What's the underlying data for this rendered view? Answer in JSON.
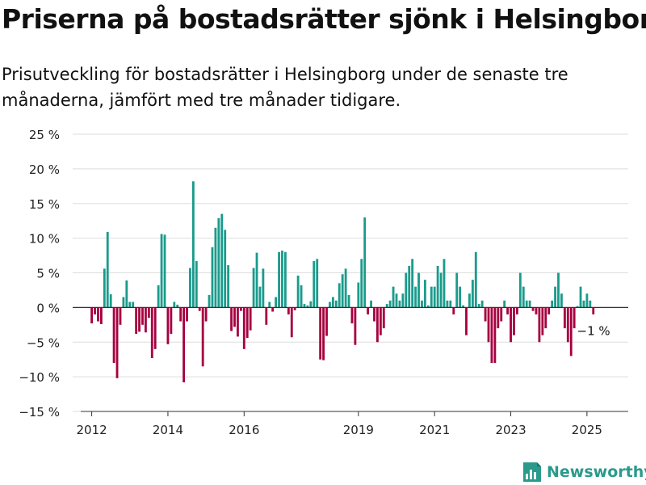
{
  "header": {
    "title": "Priserna på bostadsrätter sjönk i Helsingborg",
    "subtitle": "Prisutveckling för bostadsrätter i Helsingborg under de senaste tre månaderna, jämfört med tre månader tidigare."
  },
  "brand": {
    "name": "Newsworthy",
    "logo_icon": "bar-chart-logo-icon",
    "color": "#2a9a8b"
  },
  "chart_data": {
    "type": "bar",
    "unit": "%",
    "ylim": [
      -15,
      25
    ],
    "yticks": [
      -15,
      -10,
      -5,
      0,
      5,
      10,
      15,
      20,
      25
    ],
    "ytick_labels": [
      "−15 %",
      "−10 %",
      "−5 %",
      "0 %",
      "5 %",
      "10 %",
      "15 %",
      "20 %",
      "25 %"
    ],
    "xlim": [
      "2011-07",
      "2026-02"
    ],
    "xticks": [
      "2012-01",
      "2014-01",
      "2016-01",
      "2019-01",
      "2021-01",
      "2023-01",
      "2025-01"
    ],
    "xtick_labels": [
      "2012",
      "2014",
      "2016",
      "2019",
      "2021",
      "2023",
      "2025"
    ],
    "grid": true,
    "colors": {
      "positive": "#1a9b8c",
      "negative": "#a6003f",
      "grid": "#dddddd",
      "zero_line": "#333333"
    },
    "annotation": {
      "text": "−1 %",
      "date": "2025-06"
    },
    "series": [
      {
        "values": [
          [
            "2012-01",
            -2.3
          ],
          [
            "2012-02",
            -1.0
          ],
          [
            "2012-03",
            -2.0
          ],
          [
            "2012-04",
            -2.4
          ],
          [
            "2012-05",
            5.6
          ],
          [
            "2012-06",
            10.9
          ],
          [
            "2012-07",
            1.9
          ],
          [
            "2012-08",
            -8.0
          ],
          [
            "2012-09",
            -10.2
          ],
          [
            "2012-10",
            -2.5
          ],
          [
            "2012-11",
            1.5
          ],
          [
            "2012-12",
            3.9
          ],
          [
            "2013-01",
            0.8
          ],
          [
            "2013-02",
            0.8
          ],
          [
            "2013-03",
            -3.8
          ],
          [
            "2013-04",
            -3.5
          ],
          [
            "2013-05",
            -2.5
          ],
          [
            "2013-06",
            -3.6
          ],
          [
            "2013-07",
            -1.5
          ],
          [
            "2013-08",
            -7.3
          ],
          [
            "2013-09",
            -6.0
          ],
          [
            "2013-10",
            3.2
          ],
          [
            "2013-11",
            10.6
          ],
          [
            "2013-12",
            10.5
          ],
          [
            "2014-01",
            -5.3
          ],
          [
            "2014-02",
            -3.8
          ],
          [
            "2014-03",
            0.8
          ],
          [
            "2014-04",
            0.4
          ],
          [
            "2014-05",
            -2.0
          ],
          [
            "2014-06",
            -10.8
          ],
          [
            "2014-07",
            -2.0
          ],
          [
            "2014-08",
            5.7
          ],
          [
            "2014-09",
            18.2
          ],
          [
            "2014-10",
            6.7
          ],
          [
            "2014-11",
            -0.5
          ],
          [
            "2014-12",
            -8.5
          ],
          [
            "2015-01",
            -2.0
          ],
          [
            "2015-02",
            1.8
          ],
          [
            "2015-03",
            8.7
          ],
          [
            "2015-04",
            11.5
          ],
          [
            "2015-05",
            12.9
          ],
          [
            "2015-06",
            13.5
          ],
          [
            "2015-07",
            11.2
          ],
          [
            "2015-08",
            6.1
          ],
          [
            "2015-09",
            -3.4
          ],
          [
            "2015-10",
            -2.8
          ],
          [
            "2015-11",
            -4.2
          ],
          [
            "2015-12",
            -0.5
          ],
          [
            "2016-01",
            -6.0
          ],
          [
            "2016-02",
            -4.4
          ],
          [
            "2016-03",
            -3.3
          ],
          [
            "2016-04",
            5.7
          ],
          [
            "2016-05",
            7.9
          ],
          [
            "2016-06",
            3.0
          ],
          [
            "2016-07",
            5.6
          ],
          [
            "2016-08",
            -2.5
          ],
          [
            "2016-09",
            0.8
          ],
          [
            "2016-10",
            -0.6
          ],
          [
            "2016-11",
            1.5
          ],
          [
            "2016-12",
            8.0
          ],
          [
            "2017-01",
            8.2
          ],
          [
            "2017-02",
            8.0
          ],
          [
            "2017-03",
            -1.0
          ],
          [
            "2017-04",
            -4.3
          ],
          [
            "2017-05",
            -0.4
          ],
          [
            "2017-06",
            4.6
          ],
          [
            "2017-07",
            3.2
          ],
          [
            "2017-08",
            0.5
          ],
          [
            "2017-09",
            0.3
          ],
          [
            "2017-10",
            0.9
          ],
          [
            "2017-11",
            6.7
          ],
          [
            "2017-12",
            7.0
          ],
          [
            "2018-01",
            -7.5
          ],
          [
            "2018-02",
            -7.6
          ],
          [
            "2018-03",
            -4.1
          ],
          [
            "2018-04",
            0.8
          ],
          [
            "2018-05",
            1.5
          ],
          [
            "2018-06",
            1.0
          ],
          [
            "2018-07",
            3.5
          ],
          [
            "2018-08",
            4.8
          ],
          [
            "2018-09",
            5.6
          ],
          [
            "2018-10",
            1.8
          ],
          [
            "2018-11",
            -2.3
          ],
          [
            "2018-12",
            -5.4
          ],
          [
            "2019-01",
            3.6
          ],
          [
            "2019-02",
            7.0
          ],
          [
            "2019-03",
            13.0
          ],
          [
            "2019-04",
            -1.0
          ],
          [
            "2019-05",
            1.0
          ],
          [
            "2019-06",
            -2.0
          ],
          [
            "2019-07",
            -5.0
          ],
          [
            "2019-08",
            -4.0
          ],
          [
            "2019-09",
            -3.0
          ],
          [
            "2019-10",
            0.5
          ],
          [
            "2019-11",
            1.0
          ],
          [
            "2019-12",
            3.0
          ],
          [
            "2020-01",
            2.0
          ],
          [
            "2020-02",
            1.0
          ],
          [
            "2020-03",
            2.0
          ],
          [
            "2020-04",
            5.0
          ],
          [
            "2020-05",
            6.0
          ],
          [
            "2020-06",
            7.0
          ],
          [
            "2020-07",
            3.0
          ],
          [
            "2020-08",
            5.0
          ],
          [
            "2020-09",
            1.0
          ],
          [
            "2020-10",
            4.0
          ],
          [
            "2020-11",
            0.3
          ],
          [
            "2020-12",
            3.0
          ],
          [
            "2021-01",
            3.0
          ],
          [
            "2021-02",
            6.0
          ],
          [
            "2021-03",
            5.0
          ],
          [
            "2021-04",
            7.0
          ],
          [
            "2021-05",
            1.0
          ],
          [
            "2021-06",
            1.0
          ],
          [
            "2021-07",
            -1.0
          ],
          [
            "2021-08",
            5.0
          ],
          [
            "2021-09",
            3.0
          ],
          [
            "2021-10",
            0.3
          ],
          [
            "2021-11",
            -4.0
          ],
          [
            "2021-12",
            2.0
          ],
          [
            "2022-01",
            4.0
          ],
          [
            "2022-02",
            8.0
          ],
          [
            "2022-03",
            0.5
          ],
          [
            "2022-04",
            1.0
          ],
          [
            "2022-05",
            -2.0
          ],
          [
            "2022-06",
            -5.0
          ],
          [
            "2022-07",
            -8.0
          ],
          [
            "2022-08",
            -8.0
          ],
          [
            "2022-09",
            -3.0
          ],
          [
            "2022-10",
            -2.0
          ],
          [
            "2022-11",
            1.0
          ],
          [
            "2022-12",
            -1.0
          ],
          [
            "2023-01",
            -5.0
          ],
          [
            "2023-02",
            -4.0
          ],
          [
            "2023-03",
            -1.0
          ],
          [
            "2023-04",
            5.0
          ],
          [
            "2023-05",
            3.0
          ],
          [
            "2023-06",
            1.0
          ],
          [
            "2023-07",
            1.0
          ],
          [
            "2023-08",
            -0.5
          ],
          [
            "2023-09",
            -1.0
          ],
          [
            "2023-10",
            -5.0
          ],
          [
            "2023-11",
            -4.0
          ],
          [
            "2023-12",
            -3.0
          ],
          [
            "2024-01",
            -1.0
          ],
          [
            "2024-02",
            1.0
          ],
          [
            "2024-03",
            3.0
          ],
          [
            "2024-04",
            5.0
          ],
          [
            "2024-05",
            2.0
          ],
          [
            "2024-06",
            -3.0
          ],
          [
            "2024-07",
            -5.0
          ],
          [
            "2024-08",
            -7.0
          ],
          [
            "2024-09",
            -3.0
          ],
          [
            "2024-10",
            0.2
          ],
          [
            "2024-11",
            3.0
          ],
          [
            "2024-12",
            1.0
          ],
          [
            "2025-01",
            2.0
          ],
          [
            "2025-02",
            1.0
          ],
          [
            "2025-03",
            -1.0
          ]
        ]
      }
    ]
  }
}
